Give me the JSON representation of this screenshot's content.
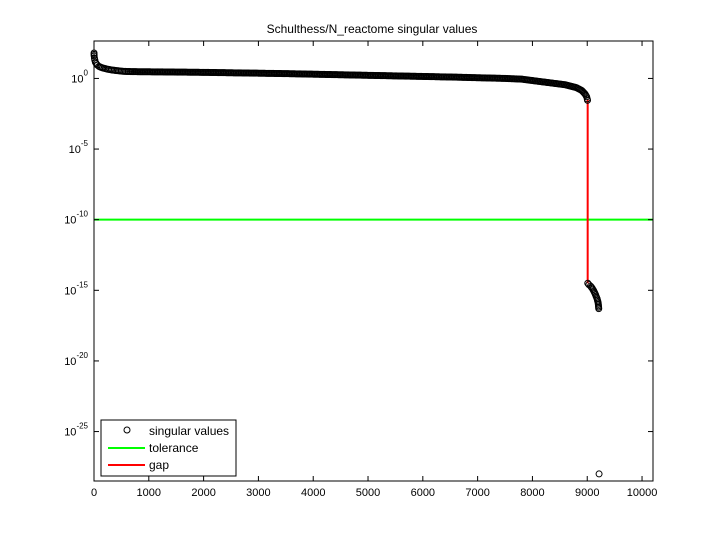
{
  "chart_data": {
    "type": "scatter",
    "title": "Schulthess/N_reactome singular values",
    "xlabel": "",
    "ylabel": "",
    "xlim": [
      0,
      10200
    ],
    "ylim_log10": [
      -28.5,
      2.65
    ],
    "yscale": "log",
    "grid": false,
    "legend_position": "bottom-left",
    "x_ticks": [
      0,
      1000,
      2000,
      3000,
      4000,
      5000,
      6000,
      7000,
      8000,
      9000,
      10000
    ],
    "y_ticks": [
      {
        "base": "10",
        "exp": "0",
        "log10": 0
      },
      {
        "base": "10",
        "exp": "-5",
        "log10": -5
      },
      {
        "base": "10",
        "exp": "-10",
        "log10": -10
      },
      {
        "base": "10",
        "exp": "-15",
        "log10": -15
      },
      {
        "base": "10",
        "exp": "-20",
        "log10": -20
      },
      {
        "base": "10",
        "exp": "-25",
        "log10": -25
      }
    ],
    "series": [
      {
        "name": "singular values",
        "marker": "circle",
        "color": "#000000",
        "points_log10": [
          [
            1,
            1.8
          ],
          [
            3,
            1.6
          ],
          [
            8,
            1.45
          ],
          [
            15,
            1.3
          ],
          [
            25,
            1.15
          ],
          [
            40,
            1.05
          ],
          [
            60,
            0.95
          ],
          [
            90,
            0.85
          ],
          [
            130,
            0.78
          ],
          [
            180,
            0.72
          ],
          [
            240,
            0.66
          ],
          [
            320,
            0.6
          ],
          [
            420,
            0.55
          ],
          [
            550,
            0.5
          ],
          [
            700,
            0.48
          ],
          [
            1000,
            0.47
          ],
          [
            1500,
            0.45
          ],
          [
            2000,
            0.43
          ],
          [
            2500,
            0.4
          ],
          [
            3000,
            0.37
          ],
          [
            3500,
            0.34
          ],
          [
            4000,
            0.3
          ],
          [
            4500,
            0.26
          ],
          [
            5000,
            0.22
          ],
          [
            5500,
            0.18
          ],
          [
            6000,
            0.14
          ],
          [
            6500,
            0.1
          ],
          [
            7000,
            0.05
          ],
          [
            7500,
            0.0
          ],
          [
            7800,
            -0.05
          ],
          [
            8000,
            -0.15
          ],
          [
            8300,
            -0.3
          ],
          [
            8600,
            -0.45
          ],
          [
            8800,
            -0.65
          ],
          [
            8900,
            -0.85
          ],
          [
            8960,
            -1.1
          ],
          [
            8990,
            -1.3
          ],
          [
            9000,
            -1.45
          ],
          [
            9005,
            -1.55
          ],
          [
            9010,
            -14.5
          ],
          [
            9030,
            -14.6
          ],
          [
            9060,
            -14.7
          ],
          [
            9090,
            -14.85
          ],
          [
            9120,
            -15.05
          ],
          [
            9150,
            -15.3
          ],
          [
            9180,
            -15.6
          ],
          [
            9200,
            -15.9
          ],
          [
            9210,
            -16.3
          ],
          [
            9216,
            -28.0
          ]
        ]
      },
      {
        "name": "tolerance",
        "color": "#00ff00",
        "y_log10": -10
      },
      {
        "name": "gap",
        "color": "#ff0000",
        "x": 9008,
        "y_log10_range": [
          -14.5,
          -1.5
        ]
      }
    ]
  }
}
